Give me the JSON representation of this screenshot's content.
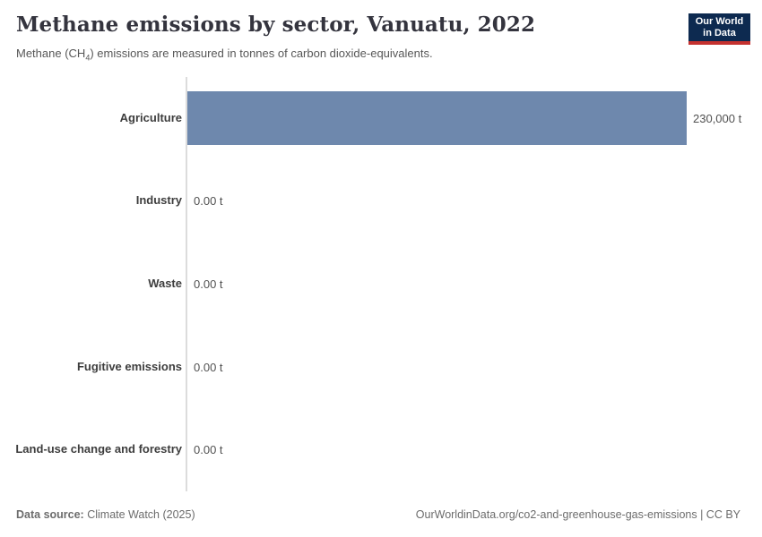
{
  "header": {
    "title": "Methane emissions by sector, Vanuatu, 2022",
    "subtitle_pre": "Methane (CH",
    "subtitle_sub": "4",
    "subtitle_post": ") emissions are measured in tonnes of carbon dioxide-equivalents.",
    "logo": {
      "line1": "Our World",
      "line2": "in Data"
    }
  },
  "chart_data": {
    "type": "bar",
    "orientation": "horizontal",
    "title": "Methane emissions by sector, Vanuatu, 2022",
    "subtitle": "Methane (CH₄) emissions are measured in tonnes of carbon dioxide-equivalents.",
    "categories": [
      "Agriculture",
      "Industry",
      "Waste",
      "Fugitive emissions",
      "Land-use change and forestry"
    ],
    "values": [
      230000,
      0,
      0,
      0,
      0
    ],
    "value_labels": [
      "230,000 t",
      "0.00 t",
      "0.00 t",
      "0.00 t",
      "0.00 t"
    ],
    "unit": "t",
    "xlabel": "",
    "ylabel": "",
    "xlim": [
      0,
      230000
    ],
    "grid": false,
    "legend": "none",
    "bar_color": "#6e88ad"
  },
  "footer": {
    "source_label": "Data source:",
    "source_value": " Climate Watch (2025)",
    "url": "OurWorldinData.org/co2-and-greenhouse-gas-emissions | CC BY"
  },
  "colors": {
    "bar": "#6e88ad",
    "logo_navy": "#0d2a50",
    "logo_red": "#c4312f",
    "axis_line": "#dcdcdc"
  }
}
